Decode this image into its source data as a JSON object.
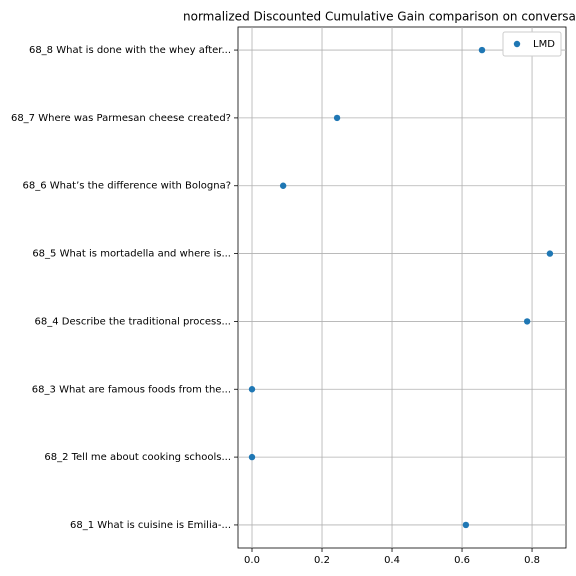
{
  "chart_data": {
    "type": "scatter",
    "title": "normalized Discounted Cumulative Gain comparison on conversa",
    "categories": [
      "68_1 What is cuisine is Emilia-...",
      "68_2 Tell me about cooking schools...",
      "68_3 What are famous foods from the...",
      "68_4 Describe the traditional process...",
      "68_5 What is mortadella and where is...",
      "68_6 What’s the difference with Bologna?",
      "68_7 Where was Parmesan cheese created?",
      "68_8 What is done with the whey after..."
    ],
    "series": [
      {
        "name": "LMD",
        "color": "#1f77b4",
        "values": [
          0.611,
          0,
          0,
          0.786,
          0.851,
          0.089,
          0.243,
          0.657
        ]
      }
    ],
    "xlim": [
      -0.04,
      0.897
    ],
    "xticks": [
      {
        "value": 0,
        "label": "0.0"
      },
      0.2,
      0.4,
      0.6,
      0.8
    ],
    "grid": true,
    "legend": "upper right"
  }
}
